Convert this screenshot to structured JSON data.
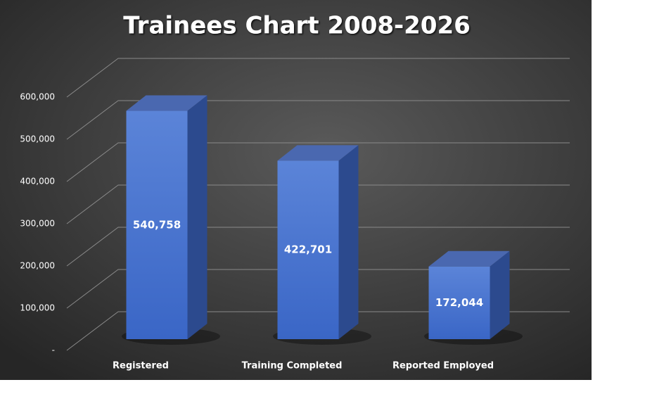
{
  "chart_data": {
    "type": "bar3d",
    "title": "Trainees Chart 2008-2026",
    "categories": [
      "Registered",
      "Training Completed",
      "Reported Employed"
    ],
    "values": [
      540758,
      422701,
      172044
    ],
    "value_labels": [
      "540,758",
      "422,701",
      "172,044"
    ],
    "color": "#4472c4",
    "ylim": [
      0,
      600000
    ],
    "yticks": [
      {
        "value": 0,
        "label": "-"
      },
      {
        "value": 100000,
        "label": "100,000"
      },
      {
        "value": 200000,
        "label": "200,000"
      },
      {
        "value": 300000,
        "label": "300,000"
      },
      {
        "value": 400000,
        "label": "400,000"
      },
      {
        "value": 500000,
        "label": "500,000"
      },
      {
        "value": 600000,
        "label": "600,000"
      }
    ],
    "grid": true
  }
}
